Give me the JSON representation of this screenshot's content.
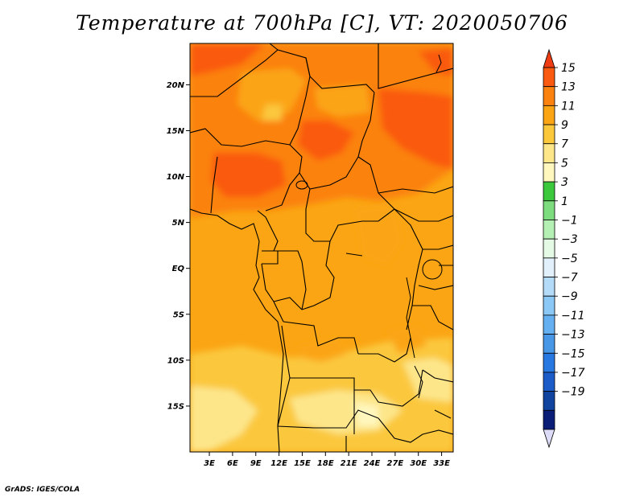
{
  "title": "Temperature at 700hPa [C], VT: 2020050706",
  "credit": "GrADS: IGES/COLA",
  "map": {
    "lat_ticks": [
      "20N",
      "15N",
      "10N",
      "5N",
      "EQ",
      "5S",
      "10S",
      "15S"
    ],
    "lon_ticks": [
      "3E",
      "6E",
      "9E",
      "12E",
      "15E",
      "18E",
      "21E",
      "24E",
      "27E",
      "30E",
      "33E"
    ],
    "lat_range": [
      -20,
      24.5
    ],
    "lon_range": [
      0.5,
      34.5
    ]
  },
  "colorbar": {
    "labels": [
      "15",
      "13",
      "11",
      "9",
      "7",
      "5",
      "3",
      "1",
      "−1",
      "−3",
      "−5",
      "−7",
      "−9",
      "−11",
      "−13",
      "−15",
      "−17",
      "−19"
    ],
    "colors": [
      "#f03c12",
      "#fa5a0f",
      "#fb820f",
      "#fba514",
      "#fbc83c",
      "#fde68a",
      "#fff7bd",
      "#3cc83c",
      "#7ddc7d",
      "#b4f0b4",
      "#e4fae4",
      "#e1f0fa",
      "#b4dcf8",
      "#8cc8f5",
      "#64b0f0",
      "#4896e6",
      "#2878e1",
      "#1c5cc8",
      "#10449f",
      "#0a1e78",
      "#dcdcf8"
    ]
  }
}
